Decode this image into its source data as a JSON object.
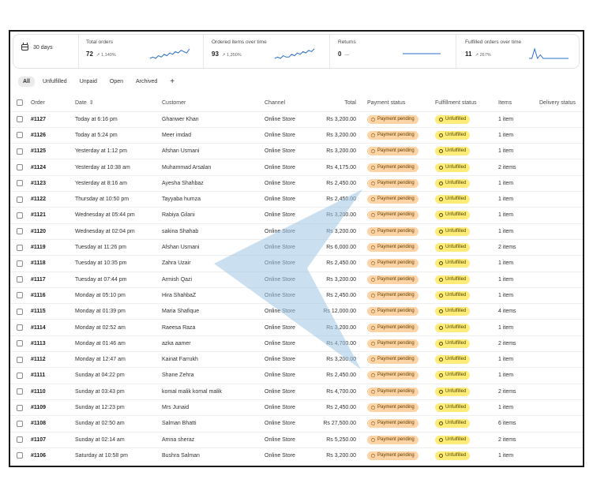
{
  "metrics": {
    "date_range": "30 days",
    "items": [
      {
        "label": "Total orders",
        "value": "72",
        "change": "↗ 1,140%",
        "spark": [
          4,
          5,
          4,
          6,
          5,
          7,
          6,
          8,
          7,
          9,
          8,
          10,
          9,
          8,
          11
        ]
      },
      {
        "label": "Ordered items over time",
        "value": "93",
        "change": "↗ 1,350%",
        "spark": [
          3,
          4,
          3,
          5,
          4,
          4,
          6,
          5,
          7,
          6,
          8,
          7,
          9,
          8,
          10
        ]
      },
      {
        "label": "Returns",
        "value": "0",
        "change": "—",
        "spark": [
          5,
          5,
          5,
          5,
          5,
          5,
          5,
          5,
          5,
          5,
          5,
          5,
          5,
          5,
          5
        ]
      },
      {
        "label": "Fulfilled orders over time",
        "value": "11",
        "change": "↗ 267%",
        "spark": [
          1,
          1,
          9,
          1,
          4,
          1,
          1,
          1,
          1,
          1,
          1,
          1,
          1,
          1,
          1
        ]
      }
    ]
  },
  "colors": {
    "payment_badge": "#fed3a5",
    "fulfillment_badge": "#ffeb78",
    "spark_line": "#2c6ecb",
    "cursor": "#9fc7e6"
  },
  "tabs": [
    "All",
    "Unfulfilled",
    "Unpaid",
    "Open",
    "Archived",
    "+"
  ],
  "table": {
    "headers": [
      "Order",
      "Date",
      "Customer",
      "Channel",
      "Total",
      "Payment status",
      "Fulfillment status",
      "Items",
      "Delivery status"
    ],
    "rows": [
      {
        "order": "#1127",
        "date": "Today at 6:16 pm",
        "customer": "Ghanwer Khan",
        "channel": "Online Store",
        "total": "Rs 3,200.00",
        "payment": "Payment pending",
        "fulfillment": "Unfulfilled",
        "items": "1 item"
      },
      {
        "order": "#1126",
        "date": "Today at 5:24 pm",
        "customer": "Meer imdad",
        "channel": "Online Store",
        "total": "Rs 3,200.00",
        "payment": "Payment pending",
        "fulfillment": "Unfulfilled",
        "items": "1 item"
      },
      {
        "order": "#1125",
        "date": "Yesterday at 1:12 pm",
        "customer": "Afshan Usmani",
        "channel": "Online Store",
        "total": "Rs 3,200.00",
        "payment": "Payment pending",
        "fulfillment": "Unfulfilled",
        "items": "1 item"
      },
      {
        "order": "#1124",
        "date": "Yesterday at 10:38 am",
        "customer": "Muhammad Arsalan",
        "channel": "Online Store",
        "total": "Rs 4,175.00",
        "payment": "Payment pending",
        "fulfillment": "Unfulfilled",
        "items": "2 items"
      },
      {
        "order": "#1123",
        "date": "Yesterday at 8:16 am",
        "customer": "Ayesha Shahbaz",
        "channel": "Online Store",
        "total": "Rs 2,450.00",
        "payment": "Payment pending",
        "fulfillment": "Unfulfilled",
        "items": "1 item"
      },
      {
        "order": "#1122",
        "date": "Thursday at 10:50 pm",
        "customer": "Tayyaba humza",
        "channel": "Online Store",
        "total": "Rs 2,450.00",
        "payment": "Payment pending",
        "fulfillment": "Unfulfilled",
        "items": "1 item"
      },
      {
        "order": "#1121",
        "date": "Wednesday at 05:44 pm",
        "customer": "Rabiya Gilani",
        "channel": "Online Store",
        "total": "Rs 3,200.00",
        "payment": "Payment pending",
        "fulfillment": "Unfulfilled",
        "items": "1 item"
      },
      {
        "order": "#1120",
        "date": "Wednesday at 02:04 pm",
        "customer": "sakina Shahab",
        "channel": "Online Store",
        "total": "Rs 3,200.00",
        "payment": "Payment pending",
        "fulfillment": "Unfulfilled",
        "items": "1 item"
      },
      {
        "order": "#1119",
        "date": "Tuesday at 11:26 pm",
        "customer": "Afshan Usmani",
        "channel": "Online Store",
        "total": "Rs 6,000.00",
        "payment": "Payment pending",
        "fulfillment": "Unfulfilled",
        "items": "2 items"
      },
      {
        "order": "#1118",
        "date": "Tuesday at 10:35 pm",
        "customer": "Zahra Uzair",
        "channel": "Online Store",
        "total": "Rs 2,450.00",
        "payment": "Payment pending",
        "fulfillment": "Unfulfilled",
        "items": "1 item"
      },
      {
        "order": "#1117",
        "date": "Tuesday at 07:44 pm",
        "customer": "Armish Qazi",
        "channel": "Online Store",
        "total": "Rs 3,200.00",
        "payment": "Payment pending",
        "fulfillment": "Unfulfilled",
        "items": "1 item"
      },
      {
        "order": "#1116",
        "date": "Monday at 05:10 pm",
        "customer": "Hira ShahbaZ",
        "channel": "Online Store",
        "total": "Rs 2,450.00",
        "payment": "Payment pending",
        "fulfillment": "Unfulfilled",
        "items": "1 item"
      },
      {
        "order": "#1115",
        "date": "Monday at 01:39 pm",
        "customer": "Maria Shafique",
        "channel": "Online Store",
        "total": "Rs 12,000.00",
        "payment": "Payment pending",
        "fulfillment": "Unfulfilled",
        "items": "4 items"
      },
      {
        "order": "#1114",
        "date": "Monday at 02:52 am",
        "customer": "Raeesa Raza",
        "channel": "Online Store",
        "total": "Rs 3,200.00",
        "payment": "Payment pending",
        "fulfillment": "Unfulfilled",
        "items": "1 item"
      },
      {
        "order": "#1113",
        "date": "Monday at 01:46 am",
        "customer": "azka aamer",
        "channel": "Online Store",
        "total": "Rs 4,700.00",
        "payment": "Payment pending",
        "fulfillment": "Unfulfilled",
        "items": "2 items"
      },
      {
        "order": "#1112",
        "date": "Monday at 12:47 am",
        "customer": "Kainat Farrukh",
        "channel": "Online Store",
        "total": "Rs 3,200.00",
        "payment": "Payment pending",
        "fulfillment": "Unfulfilled",
        "items": "1 item"
      },
      {
        "order": "#1111",
        "date": "Sunday at 04:22 pm",
        "customer": "Shane Zehra",
        "channel": "Online Store",
        "total": "Rs 2,450.00",
        "payment": "Payment pending",
        "fulfillment": "Unfulfilled",
        "items": "1 item"
      },
      {
        "order": "#1110",
        "date": "Sunday at 03:43 pm",
        "customer": "komal malik komal malik",
        "channel": "Online Store",
        "total": "Rs 4,700.00",
        "payment": "Payment pending",
        "fulfillment": "Unfulfilled",
        "items": "2 items"
      },
      {
        "order": "#1109",
        "date": "Sunday at 12:23 pm",
        "customer": "Mrs Junaid",
        "channel": "Online Store",
        "total": "Rs 2,450.00",
        "payment": "Payment pending",
        "fulfillment": "Unfulfilled",
        "items": "1 item"
      },
      {
        "order": "#1108",
        "date": "Sunday at 02:50 am",
        "customer": "Salman Bhatti",
        "channel": "Online Store",
        "total": "Rs 27,500.00",
        "payment": "Payment pending",
        "fulfillment": "Unfulfilled",
        "items": "6 items"
      },
      {
        "order": "#1107",
        "date": "Sunday at 02:14 am",
        "customer": "Amna sheraz",
        "channel": "Online Store",
        "total": "Rs 5,250.00",
        "payment": "Payment pending",
        "fulfillment": "Unfulfilled",
        "items": "2 items"
      },
      {
        "order": "#1106",
        "date": "Saturday at 10:58 pm",
        "customer": "Bushra Salman",
        "channel": "Online Store",
        "total": "Rs 3,200.00",
        "payment": "Payment pending",
        "fulfillment": "Unfulfilled",
        "items": "1 item"
      }
    ]
  }
}
